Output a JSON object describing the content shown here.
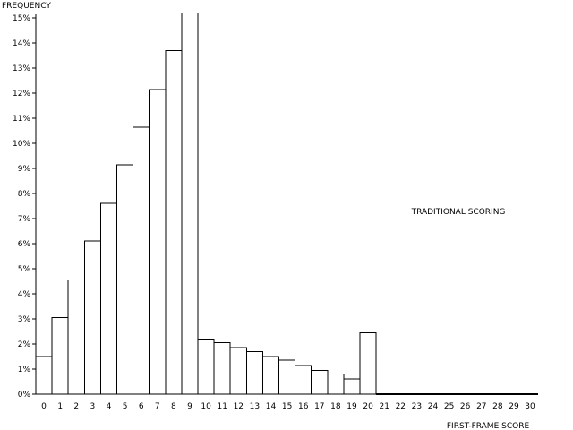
{
  "chart_data": {
    "type": "bar",
    "title": "",
    "ylabel": "FREQUENCY",
    "xlabel": "FIRST-FRAME SCORE",
    "annotation": "TRADITIONAL SCORING",
    "ylim": [
      0,
      15
    ],
    "y_ticks": [
      "0%",
      "1%",
      "2%",
      "3%",
      "4%",
      "5%",
      "6%",
      "7%",
      "8%",
      "9%",
      "10%",
      "11%",
      "12%",
      "13%",
      "14%",
      "15%"
    ],
    "categories": [
      "0",
      "1",
      "2",
      "3",
      "4",
      "5",
      "6",
      "7",
      "8",
      "9",
      "10",
      "11",
      "12",
      "13",
      "14",
      "15",
      "16",
      "17",
      "18",
      "19",
      "20",
      "21",
      "22",
      "23",
      "24",
      "25",
      "26",
      "27",
      "28",
      "29",
      "30"
    ],
    "values": [
      1.5,
      3.05,
      4.55,
      6.1,
      7.6,
      9.15,
      10.65,
      12.15,
      13.7,
      15.2,
      2.2,
      2.05,
      1.85,
      1.7,
      1.5,
      1.35,
      1.15,
      0.95,
      0.8,
      0.6,
      2.45,
      0,
      0,
      0,
      0,
      0,
      0,
      0,
      0,
      0,
      0
    ],
    "value_unit": "%",
    "grid": false,
    "legend": "none"
  }
}
